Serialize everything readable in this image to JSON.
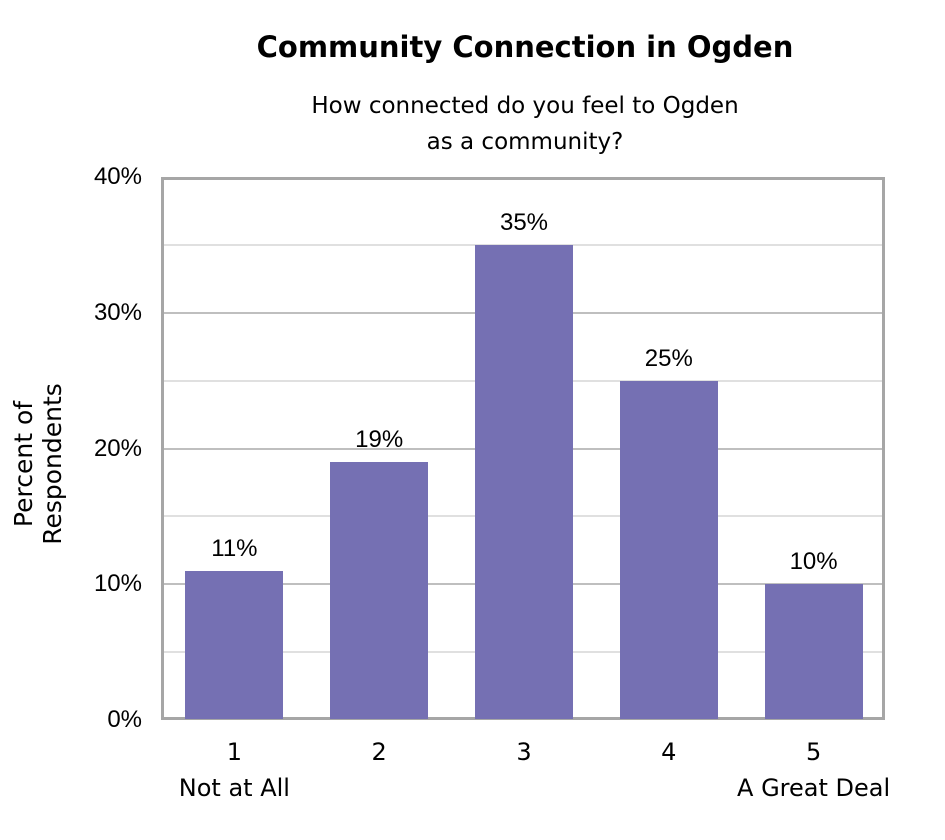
{
  "chart_data": {
    "type": "bar",
    "title": "Community Connection in Ogden",
    "subtitle_lines": [
      "How connected do you feel to Ogden",
      "as a community?"
    ],
    "xlabel": "",
    "ylabel": "Percent of Respondents",
    "categories": [
      "1",
      "2",
      "3",
      "4",
      "5"
    ],
    "category_sublabels": {
      "1": "Not at All",
      "5": "A Great Deal"
    },
    "values": [
      11,
      19,
      35,
      25,
      10
    ],
    "value_labels": [
      "11%",
      "19%",
      "35%",
      "25%",
      "10%"
    ],
    "ylim": [
      0,
      40
    ],
    "yticks": [
      "0%",
      "10%",
      "20%",
      "30%",
      "40%"
    ],
    "grid": true,
    "legend": "none",
    "colors": {
      "bar": "#7570b3",
      "frame": "#a6a6a6"
    }
  }
}
